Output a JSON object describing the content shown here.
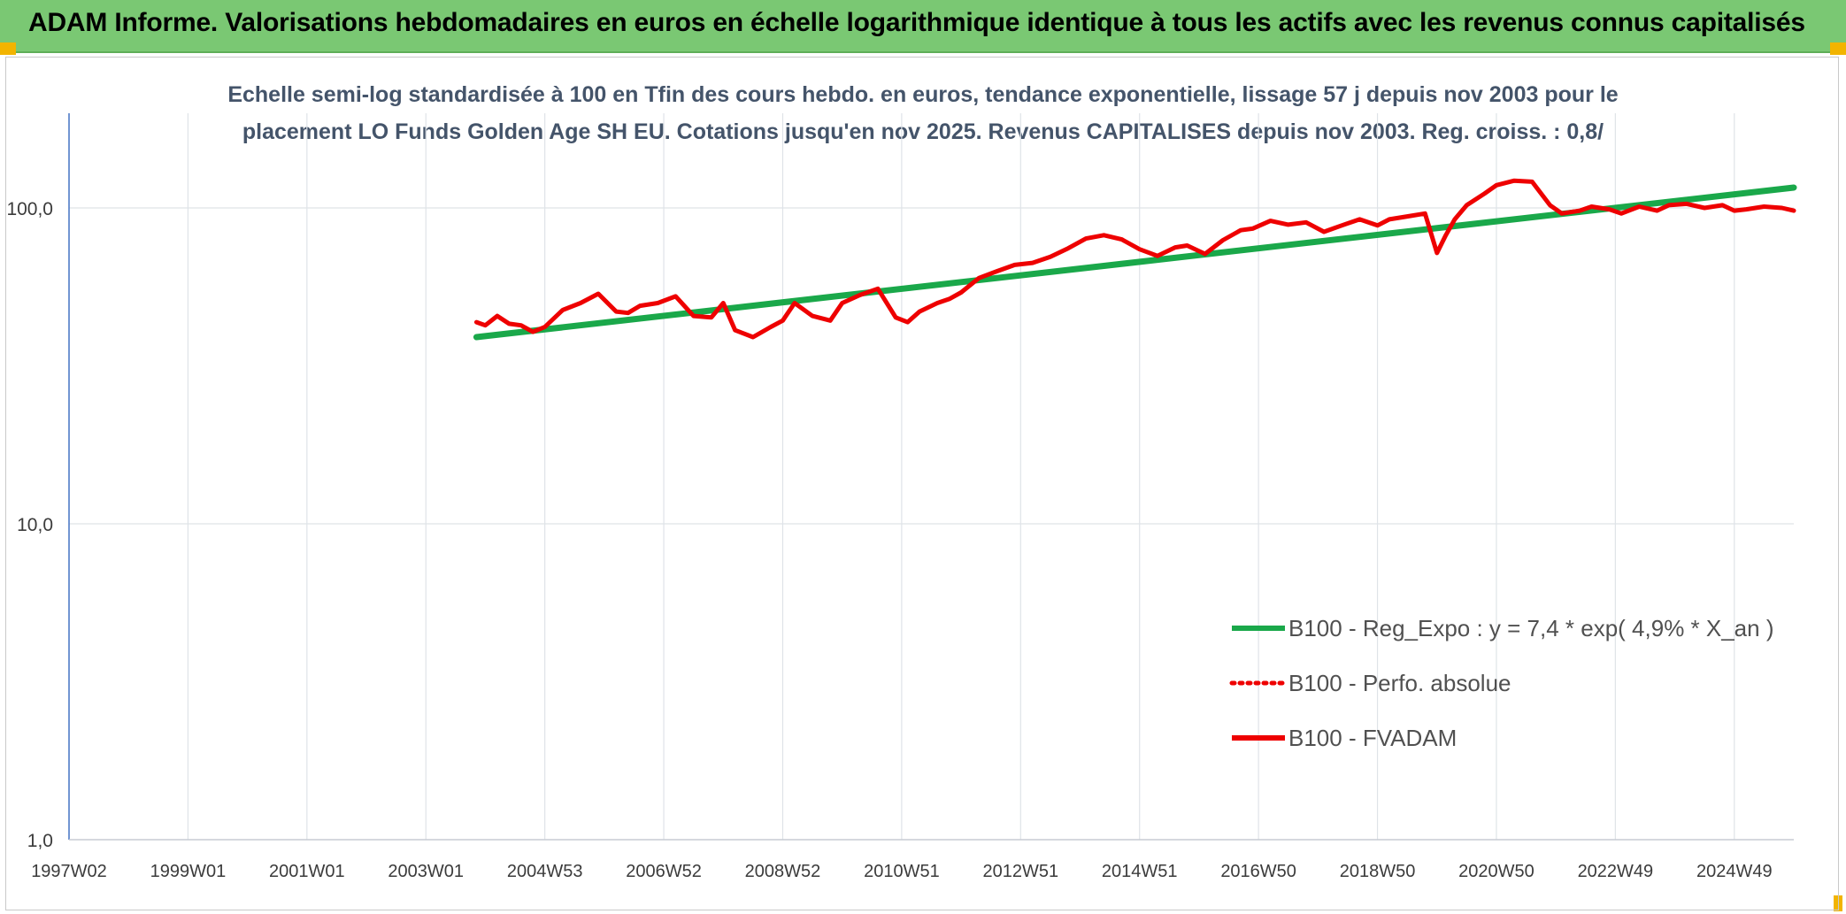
{
  "header": {
    "title": "ADAM Informe. Valorisations hebdomadaires en euros en échelle logarithmique identique à tous les actifs avec les revenus connus capitalisés"
  },
  "chart_data": {
    "type": "line",
    "title": "",
    "subtitle_line1": "Echelle semi-log standardisée à 100 en Tfin des cours hebdo. en euros, tendance exponentielle, lissage 57 j depuis nov 2003 pour le",
    "subtitle_line2": "placement LO Funds Golden Age SH EU. Cotations jusqu'en nov 2025. Revenus CAPITALISES depuis nov 2003. Reg. croiss. : 0,8/",
    "y_scale": "log",
    "ylim": [
      1,
      200
    ],
    "xlim": [
      1997.0,
      2026.0
    ],
    "grid": true,
    "legend_position": "bottom-right",
    "y_ticks": [
      {
        "value": 1,
        "label": "1,0"
      },
      {
        "value": 10,
        "label": "10,0"
      },
      {
        "value": 100,
        "label": "100,0"
      }
    ],
    "x_ticks": [
      {
        "value": 1997.0,
        "label": "1997W02"
      },
      {
        "value": 1999.0,
        "label": "1999W01"
      },
      {
        "value": 2001.0,
        "label": "2001W01"
      },
      {
        "value": 2003.0,
        "label": "2003W01"
      },
      {
        "value": 2005.0,
        "label": "2004W53"
      },
      {
        "value": 2007.0,
        "label": "2006W52"
      },
      {
        "value": 2009.0,
        "label": "2008W52"
      },
      {
        "value": 2011.0,
        "label": "2010W51"
      },
      {
        "value": 2013.0,
        "label": "2012W51"
      },
      {
        "value": 2015.0,
        "label": "2014W51"
      },
      {
        "value": 2017.0,
        "label": "2016W50"
      },
      {
        "value": 2019.0,
        "label": "2018W50"
      },
      {
        "value": 2021.0,
        "label": "2020W50"
      },
      {
        "value": 2023.0,
        "label": "2022W49"
      },
      {
        "value": 2025.0,
        "label": "2024W49"
      }
    ],
    "series": [
      {
        "name": "B100 - Reg_Expo : y = 7,4 * exp( 4,9% *  X_an )",
        "color": "#1aa84a",
        "style": "solid",
        "x": [
          2003.85,
          2026.0
        ],
        "y": [
          39.0,
          116.0
        ]
      },
      {
        "name": "B100 - Perfo. absolue",
        "color": "#ee0000",
        "style": "dotted",
        "x": [],
        "y": []
      },
      {
        "name": "B100 - FVADAM",
        "color": "#ee0000",
        "style": "solid",
        "x": [
          2003.85,
          2004.0,
          2004.2,
          2004.4,
          2004.6,
          2004.8,
          2005.0,
          2005.3,
          2005.6,
          2005.9,
          2006.2,
          2006.4,
          2006.6,
          2006.9,
          2007.2,
          2007.5,
          2007.8,
          2008.0,
          2008.2,
          2008.5,
          2008.8,
          2009.0,
          2009.2,
          2009.5,
          2009.8,
          2010.0,
          2010.3,
          2010.6,
          2010.9,
          2011.1,
          2011.3,
          2011.6,
          2011.8,
          2012.0,
          2012.3,
          2012.6,
          2012.9,
          2013.2,
          2013.5,
          2013.8,
          2014.1,
          2014.4,
          2014.7,
          2015.0,
          2015.3,
          2015.6,
          2015.8,
          2016.1,
          2016.4,
          2016.7,
          2016.9,
          2017.2,
          2017.5,
          2017.8,
          2018.1,
          2018.4,
          2018.7,
          2019.0,
          2019.2,
          2019.5,
          2019.8,
          2020.0,
          2020.15,
          2020.3,
          2020.5,
          2020.8,
          2021.0,
          2021.3,
          2021.6,
          2021.9,
          2022.1,
          2022.4,
          2022.6,
          2022.9,
          2023.1,
          2023.4,
          2023.7,
          2023.9,
          2024.2,
          2024.5,
          2024.8,
          2025.0,
          2025.2,
          2025.5,
          2025.8,
          2026.0
        ],
        "y": [
          43.5,
          42.5,
          45.5,
          43.0,
          42.5,
          40.5,
          42.0,
          47.5,
          50.0,
          53.5,
          47.0,
          46.5,
          49.0,
          50.0,
          52.5,
          45.5,
          45.0,
          50.0,
          41.0,
          39.0,
          42.0,
          44.0,
          50.0,
          45.5,
          44.0,
          50.0,
          53.0,
          55.5,
          45.0,
          43.5,
          47.0,
          50.0,
          51.5,
          54.0,
          60.0,
          63.0,
          66.0,
          67.0,
          70.0,
          74.5,
          80.0,
          82.0,
          79.5,
          74.0,
          70.5,
          75.0,
          76.0,
          71.5,
          79.0,
          85.0,
          86.0,
          91.0,
          88.5,
          90.0,
          84.0,
          88.0,
          92.0,
          88.0,
          92.0,
          94.0,
          96.0,
          72.0,
          82.0,
          92.0,
          102.0,
          111.0,
          118.0,
          122.0,
          121.0,
          102.0,
          96.0,
          98.0,
          101.0,
          99.0,
          96.0,
          101.0,
          98.0,
          102.0,
          103.0,
          100.0,
          102.0,
          98.0,
          99.0,
          101.0,
          100.0,
          98.0
        ]
      }
    ]
  }
}
